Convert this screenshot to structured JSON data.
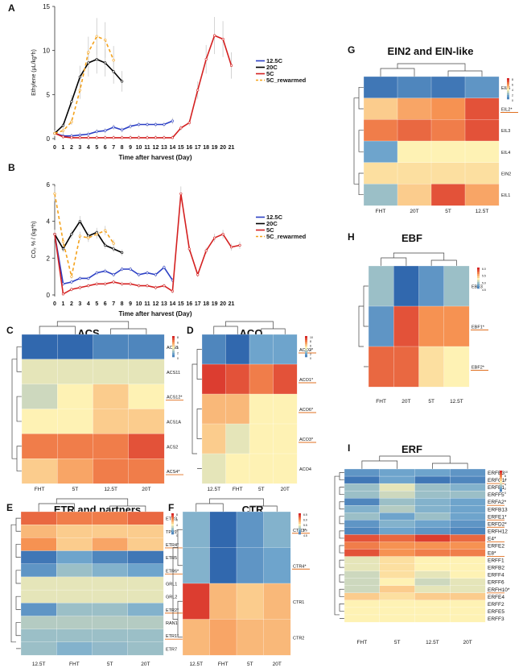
{
  "figure": {
    "background": "#ffffff"
  },
  "chart_data": [
    {
      "panel": "A",
      "type": "line",
      "xlabel": "Time after harvest (Day)",
      "ylabel": "Ethylene (μL/kg*h)",
      "ylim": [
        0,
        15
      ],
      "yticks": [
        0,
        5,
        10,
        15
      ],
      "x": [
        0,
        1,
        2,
        3,
        4,
        5,
        6,
        7,
        8,
        9,
        10,
        11,
        12,
        13,
        14,
        15,
        16,
        17,
        18,
        19,
        20,
        21
      ],
      "legend": "top-right",
      "series": [
        {
          "name": "12.5C",
          "color": "#2b3fc4",
          "dash": "",
          "points": [
            [
              0,
              0.6
            ],
            [
              1,
              0.3
            ],
            [
              2,
              0.3
            ],
            [
              3,
              0.4
            ],
            [
              4,
              0.5
            ],
            [
              5,
              0.8
            ],
            [
              6,
              0.9
            ],
            [
              7,
              1.3
            ],
            [
              8,
              1.0
            ],
            [
              9,
              1.4
            ],
            [
              10,
              1.6
            ],
            [
              11,
              1.6
            ],
            [
              12,
              1.6
            ],
            [
              13,
              1.6
            ],
            [
              14,
              2.0
            ]
          ]
        },
        {
          "name": "20C",
          "color": "#000000",
          "dash": "",
          "points": [
            [
              0,
              0.6
            ],
            [
              1,
              1.5
            ],
            [
              2,
              4.2
            ],
            [
              3,
              7.0
            ],
            [
              4,
              8.6
            ],
            [
              5,
              9.0
            ],
            [
              6,
              8.6
            ],
            [
              7,
              7.6
            ],
            [
              8,
              6.5
            ]
          ]
        },
        {
          "name": "5C",
          "color": "#d42020",
          "dash": "",
          "points": [
            [
              0,
              0.6
            ],
            [
              1,
              0.2
            ],
            [
              2,
              0.1
            ],
            [
              3,
              0.1
            ],
            [
              4,
              0.1
            ],
            [
              5,
              0.1
            ],
            [
              6,
              0.1
            ],
            [
              7,
              0.1
            ],
            [
              8,
              0.1
            ],
            [
              9,
              0.1
            ],
            [
              10,
              0.1
            ],
            [
              11,
              0.1
            ],
            [
              12,
              0.1
            ],
            [
              13,
              0.1
            ],
            [
              14,
              0.1
            ],
            [
              15,
              1.2
            ],
            [
              16,
              1.8
            ],
            [
              17,
              5.5
            ],
            [
              18,
              9.0
            ],
            [
              19,
              11.7
            ],
            [
              20,
              11.3
            ],
            [
              21,
              8.3
            ]
          ]
        },
        {
          "name": "5C_rewarmed",
          "color": "#f4a21c",
          "dash": "4,3",
          "points": [
            [
              0,
              0.6
            ],
            [
              1,
              0.9
            ],
            [
              2,
              1.9
            ],
            [
              3,
              5.5
            ],
            [
              4,
              9.8
            ],
            [
              5,
              11.6
            ],
            [
              6,
              11.2
            ],
            [
              7,
              8.9
            ]
          ]
        }
      ]
    },
    {
      "panel": "B",
      "type": "line",
      "xlabel": "Time after harvest (Day)",
      "ylabel": "CO₂ % / (kg*h)",
      "ylim": [
        0,
        6
      ],
      "yticks": [
        0,
        2,
        4,
        6
      ],
      "x": [
        0,
        1,
        2,
        3,
        4,
        5,
        6,
        7,
        8,
        9,
        10,
        11,
        12,
        13,
        14,
        15,
        16,
        17,
        18,
        19,
        20,
        21
      ],
      "legend": "top-right",
      "series": [
        {
          "name": "12.5C",
          "color": "#2b3fc4",
          "dash": "",
          "points": [
            [
              0,
              3.3
            ],
            [
              1,
              0.6
            ],
            [
              2,
              0.7
            ],
            [
              3,
              0.9
            ],
            [
              4,
              0.9
            ],
            [
              5,
              1.2
            ],
            [
              6,
              1.3
            ],
            [
              7,
              1.1
            ],
            [
              8,
              1.4
            ],
            [
              9,
              1.4
            ],
            [
              10,
              1.1
            ],
            [
              11,
              1.2
            ],
            [
              12,
              1.1
            ],
            [
              13,
              1.5
            ],
            [
              14,
              0.8
            ]
          ]
        },
        {
          "name": "20C",
          "color": "#000000",
          "dash": "",
          "points": [
            [
              0,
              3.3
            ],
            [
              1,
              2.5
            ],
            [
              2,
              3.3
            ],
            [
              3,
              4.0
            ],
            [
              4,
              3.2
            ],
            [
              5,
              3.4
            ],
            [
              6,
              2.7
            ],
            [
              7,
              2.5
            ],
            [
              8,
              2.3
            ]
          ]
        },
        {
          "name": "5C",
          "color": "#d42020",
          "dash": "",
          "points": [
            [
              0,
              3.3
            ],
            [
              1,
              0.05
            ],
            [
              2,
              0.3
            ],
            [
              3,
              0.4
            ],
            [
              4,
              0.5
            ],
            [
              5,
              0.6
            ],
            [
              6,
              0.6
            ],
            [
              7,
              0.7
            ],
            [
              8,
              0.6
            ],
            [
              9,
              0.6
            ],
            [
              10,
              0.5
            ],
            [
              11,
              0.5
            ],
            [
              12,
              0.4
            ],
            [
              13,
              0.5
            ],
            [
              14,
              0.2
            ],
            [
              15,
              5.5
            ],
            [
              16,
              2.5
            ],
            [
              17,
              1.1
            ],
            [
              18,
              2.4
            ],
            [
              19,
              3.1
            ],
            [
              20,
              3.3
            ],
            [
              21,
              2.6
            ],
            [
              22,
              2.7
            ]
          ]
        },
        {
          "name": "5C_rewarmed",
          "color": "#f4a21c",
          "dash": "4,3",
          "points": [
            [
              0,
              5.5
            ],
            [
              1,
              2.9
            ],
            [
              2,
              1.0
            ],
            [
              3,
              3.2
            ],
            [
              4,
              3.1
            ],
            [
              5,
              3.3
            ],
            [
              6,
              3.5
            ],
            [
              7,
              2.8
            ]
          ]
        }
      ]
    },
    {
      "panel": "C",
      "type": "heatmap",
      "title": "ACS",
      "cbar_ticks": [
        "8",
        "6",
        "4",
        "2",
        "0"
      ],
      "columns": [
        "FHT",
        "5T",
        "12.5T",
        "20T"
      ],
      "rows": [
        "ACS8",
        "ACS11",
        "ACS12*",
        "ACS1A",
        "ACS2",
        "ACS4*"
      ],
      "underlined": [
        "ACS12*",
        "ACS4*"
      ],
      "values": [
        [
          0,
          0,
          1,
          1
        ],
        [
          4.5,
          4.5,
          4.5,
          4.5
        ],
        [
          4,
          5,
          6,
          5
        ],
        [
          5,
          5,
          6,
          6
        ],
        [
          8,
          8,
          8,
          9
        ],
        [
          6,
          7,
          8,
          8
        ]
      ]
    },
    {
      "panel": "D",
      "type": "heatmap",
      "title": "ACO",
      "cbar_ticks": [
        "10",
        "8",
        "6",
        "4",
        "2",
        "0"
      ],
      "columns": [
        "12.5T",
        "FHT",
        "5T",
        "20T"
      ],
      "rows": [
        "ACO2*",
        "ACO1*",
        "ACO6*",
        "ACO3*",
        "ACO4"
      ],
      "underlined": [
        "ACO2*",
        "ACO1*",
        "ACO6*",
        "ACO3*"
      ],
      "values": [
        [
          1,
          0,
          2,
          2
        ],
        [
          9.5,
          9,
          8,
          9
        ],
        [
          6.5,
          6.5,
          5,
          5
        ],
        [
          6,
          4.5,
          5,
          5
        ],
        [
          4.5,
          5,
          5,
          5
        ]
      ]
    },
    {
      "panel": "E",
      "type": "heatmap",
      "title": "ETR and partners",
      "cbar_ticks": [
        "8",
        "6",
        "4",
        "2",
        "0"
      ],
      "columns": [
        "12.5T",
        "FHT",
        "5T",
        "20T"
      ],
      "rows": [
        "ETR3",
        "TPR1",
        "ETR4*",
        "ETR5",
        "ETR6*",
        "GRL1",
        "GRL2",
        "ETR2*",
        "RAN1",
        "ETR1*",
        "ETR7"
      ],
      "underlined": [
        "ETR4*",
        "ETR6*",
        "ETR2*",
        "ETR1*"
      ],
      "values": [
        [
          8.5,
          8,
          8,
          8.5
        ],
        [
          6.5,
          6,
          6,
          6
        ],
        [
          7.5,
          6,
          7,
          6
        ],
        [
          0.5,
          2,
          1,
          0.5
        ],
        [
          1.5,
          3,
          2.5,
          2
        ],
        [
          4.5,
          4.5,
          4.5,
          4.5
        ],
        [
          4.5,
          4.5,
          4.5,
          4.5
        ],
        [
          1.5,
          3,
          3,
          2.5
        ],
        [
          3.5,
          3.5,
          3.5,
          3.5
        ],
        [
          3,
          3,
          3,
          3
        ],
        [
          3,
          2.5,
          2.8,
          3
        ]
      ]
    },
    {
      "panel": "F",
      "type": "heatmap",
      "title": "CTR",
      "cbar_ticks": [
        "6.5",
        "6.0",
        "5.5",
        "5.0",
        "4.5"
      ],
      "columns": [
        "12.5T",
        "FHT",
        "5T",
        "20T"
      ],
      "rows": [
        "CTR3*",
        "CTR4*",
        "CTR1",
        "CTR2"
      ],
      "underlined": [
        "CTR3*",
        "CTR4*"
      ],
      "values": [
        [
          2.5,
          0,
          1.5,
          2.5
        ],
        [
          2.5,
          0,
          1.5,
          2
        ],
        [
          9.5,
          6.5,
          6,
          6.5
        ],
        [
          6.5,
          7,
          6.5,
          6.5
        ]
      ]
    },
    {
      "panel": "G",
      "type": "heatmap",
      "title": "EIN2 and EIN-like",
      "cbar_ticks": [
        "8",
        "6",
        "4",
        "2",
        "0"
      ],
      "columns": [
        "FHT",
        "20T",
        "5T",
        "12.5T"
      ],
      "rows": [
        "EIL5",
        "EIL2*",
        "EIL3",
        "EIL4",
        "EIN2",
        "EIL1"
      ],
      "underlined": [
        "EIL2*"
      ],
      "values": [
        [
          0.5,
          1,
          0.5,
          1.5
        ],
        [
          6,
          7,
          7.5,
          9
        ],
        [
          8,
          8.5,
          8,
          9
        ],
        [
          2,
          5,
          5,
          5
        ],
        [
          5.5,
          5.5,
          5.5,
          5.5
        ],
        [
          3,
          6,
          9,
          7
        ]
      ]
    },
    {
      "panel": "H",
      "type": "heatmap",
      "title": "EBF",
      "cbar_ticks": [
        "6.0",
        "5.5",
        "5.0",
        "4.5"
      ],
      "columns": [
        "FHT",
        "20T",
        "5T",
        "12.5T"
      ],
      "rows": [
        "EBF3",
        "EBF1*",
        "EBF2*"
      ],
      "underlined": [
        "EBF1*",
        "EBF2*"
      ],
      "values": [
        [
          3,
          0,
          1.5,
          3
        ],
        [
          1.5,
          9,
          7.5,
          7.5
        ],
        [
          8.5,
          8.5,
          5.5,
          5
        ]
      ]
    },
    {
      "panel": "I",
      "type": "heatmap",
      "title": "ERF",
      "cbar_ticks": [
        "10",
        "8",
        "6",
        "4",
        "2",
        "0"
      ],
      "columns": [
        "FHT",
        "5T",
        "12.5T",
        "20T"
      ],
      "rows": [
        "ERFB3",
        "ERFC1*",
        "ERFB1",
        "ERFF5",
        "ERFA2*",
        "ERFB13",
        "ERFE1*",
        "ERFD2*",
        "ERFH12",
        "E4*",
        "ERFE2",
        "E8*",
        "ERFF1",
        "ERFB2",
        "ERFF4",
        "ERFF6",
        "ERFH10*",
        "ERFE4",
        "ERFF2",
        "ERFE5",
        "ERFF3"
      ],
      "underlined": [
        "ERFC1*",
        "ERFA2*",
        "ERFE1*",
        "ERFD2*",
        "E4*",
        "E8*",
        "ERFH10*"
      ],
      "values": [
        [
          1.5,
          2,
          2,
          1.5
        ],
        [
          0.5,
          2,
          0.5,
          1
        ],
        [
          3,
          4.5,
          3,
          2.5
        ],
        [
          3,
          4,
          3,
          3
        ],
        [
          1,
          3,
          2.5,
          2
        ],
        [
          2.5,
          3.5,
          2.5,
          2
        ],
        [
          3,
          2,
          3,
          2
        ],
        [
          1.5,
          2.5,
          2,
          1.5
        ],
        [
          1,
          2,
          1.5,
          1
        ],
        [
          9,
          8.5,
          9.5,
          8.5
        ],
        [
          8,
          7.5,
          7.5,
          7.5
        ],
        [
          9,
          7.5,
          8,
          8
        ],
        [
          4.5,
          5.5,
          5,
          5
        ],
        [
          4.5,
          5.5,
          5,
          5
        ],
        [
          4,
          5.5,
          4.5,
          5
        ],
        [
          4,
          5,
          4,
          4.5
        ],
        [
          4,
          6,
          4.5,
          4.5
        ],
        [
          6,
          5.5,
          6,
          6
        ],
        [
          5,
          5,
          5,
          5
        ],
        [
          5,
          5,
          5,
          5
        ],
        [
          5,
          5,
          5,
          5
        ]
      ]
    }
  ]
}
